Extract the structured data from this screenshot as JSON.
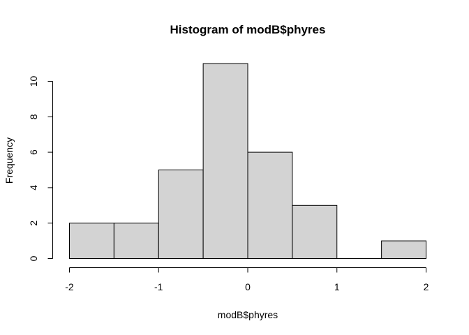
{
  "chart_data": {
    "type": "bar",
    "subtype": "histogram",
    "title": "Histogram of modB$phyres",
    "xlabel": "modB$phyres",
    "ylabel": "Frequency",
    "bins": [
      {
        "from": -2.0,
        "to": -1.5,
        "count": 2
      },
      {
        "from": -1.5,
        "to": -1.0,
        "count": 2
      },
      {
        "from": -1.0,
        "to": -0.5,
        "count": 5
      },
      {
        "from": -0.5,
        "to": 0.0,
        "count": 11
      },
      {
        "from": 0.0,
        "to": 0.5,
        "count": 6
      },
      {
        "from": 0.5,
        "to": 1.0,
        "count": 3
      },
      {
        "from": 1.0,
        "to": 1.5,
        "count": 0
      },
      {
        "from": 1.5,
        "to": 2.0,
        "count": 1
      }
    ],
    "xlim": [
      -2,
      2
    ],
    "ylim": [
      0,
      11
    ],
    "x_ticks": [
      "-2",
      "-1",
      "0",
      "1",
      "2"
    ],
    "y_ticks": [
      "0",
      "2",
      "4",
      "6",
      "8",
      "10"
    ],
    "bar_color": "#d3d3d3",
    "grid": false
  }
}
